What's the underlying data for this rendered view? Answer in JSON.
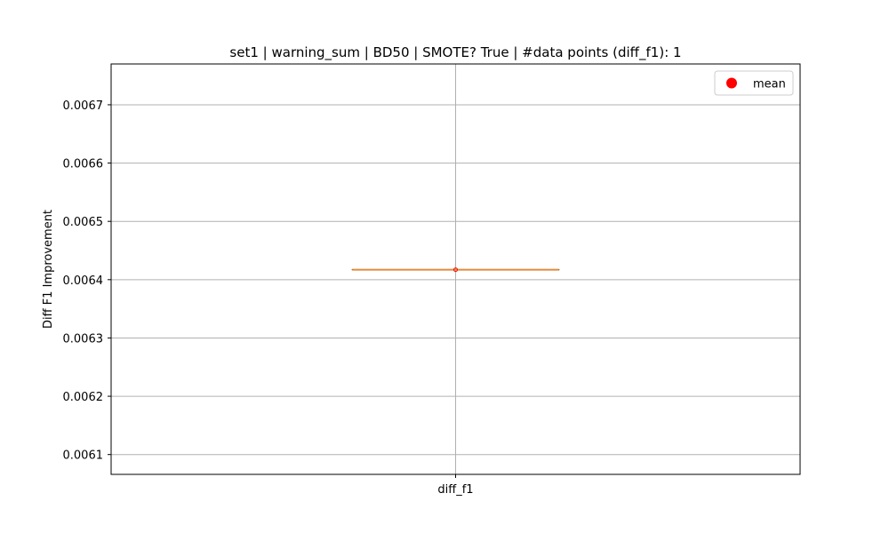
{
  "chart_data": {
    "type": "box",
    "title": "set1 | warning_sum | BD50 | SMOTE? True | #data points (diff_f1): 1",
    "xlabel": "",
    "ylabel": "Diff F1 Improvement",
    "categories": [
      "diff_f1"
    ],
    "ylim": [
      0.006066,
      0.00677
    ],
    "yticks": [
      0.0061,
      0.0062,
      0.0063,
      0.0064,
      0.0065,
      0.0066,
      0.0067
    ],
    "ytick_labels": [
      "0.0061",
      "0.0062",
      "0.0063",
      "0.0064",
      "0.0065",
      "0.0066",
      "0.0067"
    ],
    "grid": true,
    "boxes": [
      {
        "category": "diff_f1",
        "min": 0.006417,
        "q1": 0.006417,
        "median": 0.006417,
        "q3": 0.006417,
        "max": 0.006417,
        "mean": 0.006417
      }
    ],
    "legend": {
      "position": "top-right",
      "entries": [
        {
          "label": "mean",
          "marker": "circle",
          "color": "#ff0000"
        }
      ]
    },
    "colors": {
      "median": "#e08a3c",
      "whisker": "#000000",
      "mean": "#ff0000",
      "grid": "#b0b0b0",
      "axes": "#000000"
    }
  }
}
